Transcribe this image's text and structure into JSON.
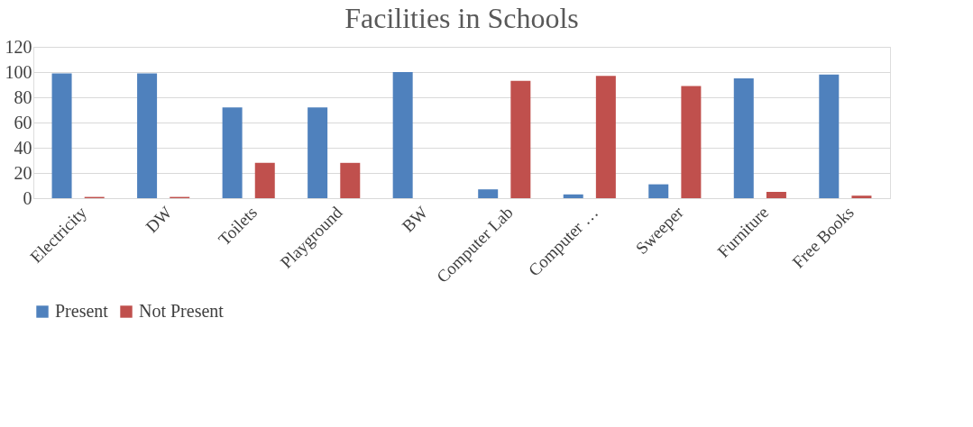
{
  "chart_data": {
    "type": "bar",
    "title": "Facilities in Schools",
    "categories": [
      "Electricity",
      "DW",
      "Toilets",
      "Playground",
      "BW",
      "Computer Lab",
      "Computer …",
      "Sweeper",
      "Furniture",
      "Free Books"
    ],
    "series": [
      {
        "name": "Present",
        "color": "#4f81bd",
        "values": [
          99,
          99,
          72,
          72,
          100,
          7,
          3,
          11,
          95,
          98
        ]
      },
      {
        "name": "Not Present",
        "color": "#c0504d",
        "values": [
          1,
          1,
          28,
          28,
          0,
          93,
          97,
          89,
          5,
          2
        ]
      }
    ],
    "ylim": [
      0,
      120
    ],
    "yticks": [
      0,
      20,
      40,
      60,
      80,
      100,
      120
    ],
    "grid": "y",
    "legend": "bottom"
  }
}
